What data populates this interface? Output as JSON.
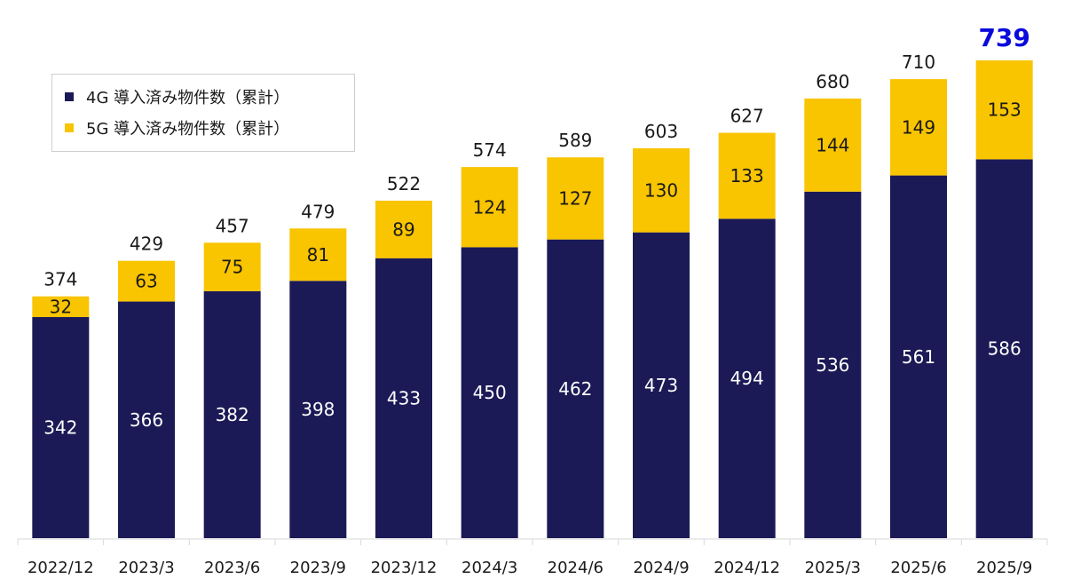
{
  "chart_data": {
    "type": "bar",
    "stacked": true,
    "title": "",
    "xlabel": "",
    "ylabel": "",
    "ylim": [
      0,
      739
    ],
    "grid": false,
    "legend_position": "top-left",
    "categories": [
      "2022/12",
      "2023/3",
      "2023/6",
      "2023/9",
      "2023/12",
      "2024/3",
      "2024/6",
      "2024/9",
      "2024/12",
      "2025/3",
      "2025/6",
      "2025/9"
    ],
    "series": [
      {
        "name": "4G 導入済み物件数（累計）",
        "color": "#1b1a56",
        "label_color": "#ffffff",
        "values": [
          342,
          366,
          382,
          398,
          433,
          450,
          462,
          473,
          494,
          536,
          561,
          586
        ]
      },
      {
        "name": "5G 導入済み物件数（累計）",
        "color": "#f9c400",
        "label_color": "#1a1a1a",
        "values": [
          32,
          63,
          75,
          81,
          89,
          124,
          127,
          130,
          133,
          144,
          149,
          153
        ]
      }
    ],
    "totals": [
      374,
      429,
      457,
      479,
      522,
      574,
      589,
      603,
      627,
      680,
      710,
      739
    ],
    "highlight": {
      "index": 11,
      "color": "#0a0adc"
    }
  }
}
